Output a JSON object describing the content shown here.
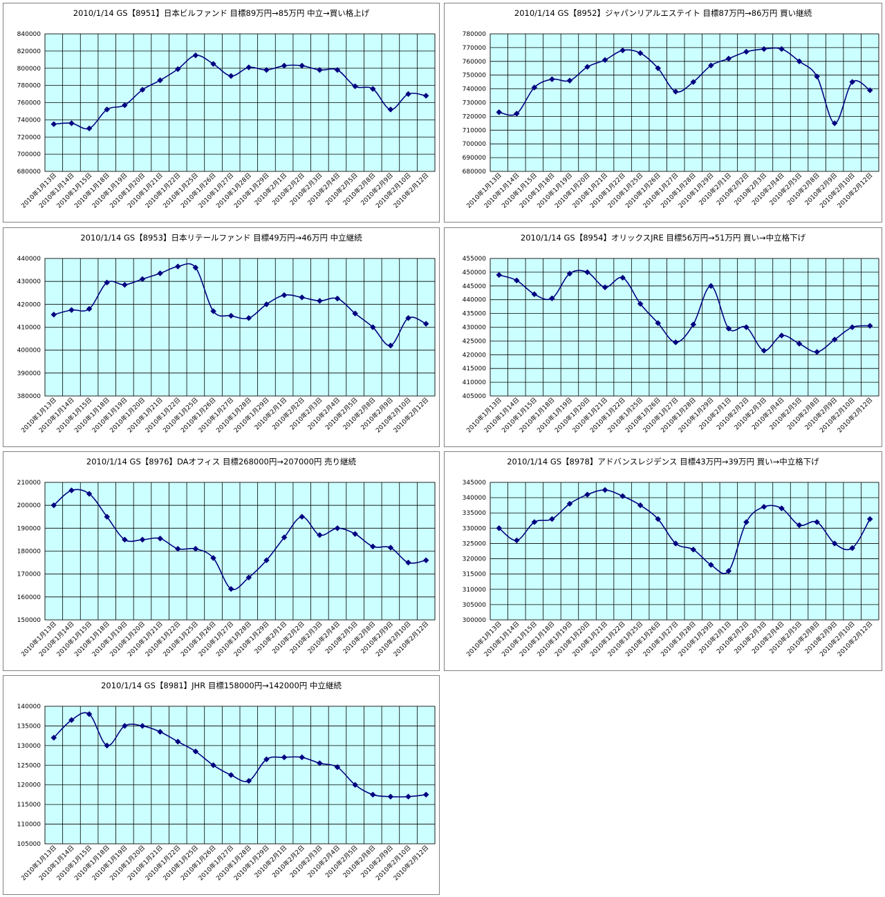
{
  "chart_data": [
    {
      "type": "line",
      "title": "2010/1/14 GS【8951】日本ビルファンド 目標89万円→85万円 中立→買い格上げ",
      "categories": [
        "2010年1月13日",
        "2010年1月14日",
        "2010年1月15日",
        "2010年1月18日",
        "2010年1月19日",
        "2010年1月20日",
        "2010年1月21日",
        "2010年1月22日",
        "2010年1月25日",
        "2010年1月26日",
        "2010年1月27日",
        "2010年1月28日",
        "2010年1月29日",
        "2010年2月1日",
        "2010年2月2日",
        "2010年2月3日",
        "2010年2月4日",
        "2010年2月5日",
        "2010年2月8日",
        "2010年2月9日",
        "2010年2月10日",
        "2010年2月12日"
      ],
      "values": [
        735000,
        736000,
        730000,
        752000,
        757000,
        775000,
        786000,
        799000,
        815000,
        805000,
        791000,
        801000,
        798000,
        803000,
        803000,
        798000,
        798000,
        779000,
        776000,
        752000,
        770000,
        768000
      ],
      "ylim": [
        680000,
        840000
      ],
      "ystep": 20000,
      "yticks": [
        "680000",
        "700000",
        "720000",
        "740000",
        "760000",
        "780000",
        "800000",
        "820000",
        "840000"
      ],
      "grid": true,
      "legend": "none",
      "plot_color": "#ccffff",
      "line_color": "#000080"
    },
    {
      "type": "line",
      "title": "2010/1/14 GS【8952】ジャパンリアルエステイト 目標87万円→86万円 買い継続",
      "categories": [
        "2010年1月13日",
        "2010年1月14日",
        "2010年1月15日",
        "2010年1月18日",
        "2010年1月19日",
        "2010年1月20日",
        "2010年1月21日",
        "2010年1月22日",
        "2010年1月25日",
        "2010年1月26日",
        "2010年1月27日",
        "2010年1月28日",
        "2010年1月29日",
        "2010年2月1日",
        "2010年2月2日",
        "2010年2月3日",
        "2010年2月4日",
        "2010年2月5日",
        "2010年2月8日",
        "2010年2月9日",
        "2010年2月10日",
        "2010年2月12日"
      ],
      "values": [
        723000,
        722000,
        741000,
        747000,
        746000,
        756000,
        761000,
        768000,
        766000,
        755000,
        738000,
        745000,
        757000,
        762000,
        767000,
        769000,
        769000,
        760000,
        749000,
        715000,
        745000,
        739000
      ],
      "ylim": [
        680000,
        780000
      ],
      "ystep": 10000,
      "yticks": [
        "680000",
        "690000",
        "700000",
        "710000",
        "720000",
        "730000",
        "740000",
        "750000",
        "760000",
        "770000",
        "780000"
      ],
      "grid": true,
      "legend": "none",
      "plot_color": "#ccffff",
      "line_color": "#000080"
    },
    {
      "type": "line",
      "title": "2010/1/14 GS【8953】日本リテールファンド 目標49万円→46万円 中立継続",
      "categories": [
        "2010年1月13日",
        "2010年1月14日",
        "2010年1月15日",
        "2010年1月18日",
        "2010年1月19日",
        "2010年1月20日",
        "2010年1月21日",
        "2010年1月22日",
        "2010年1月25日",
        "2010年1月26日",
        "2010年1月27日",
        "2010年1月28日",
        "2010年1月29日",
        "2010年2月1日",
        "2010年2月2日",
        "2010年2月3日",
        "2010年2月4日",
        "2010年2月5日",
        "2010年2月8日",
        "2010年2月9日",
        "2010年2月10日",
        "2010年2月12日"
      ],
      "values": [
        415500,
        417500,
        418000,
        429500,
        428500,
        431000,
        433500,
        436500,
        436000,
        417000,
        415000,
        414000,
        420000,
        424000,
        423000,
        421500,
        422500,
        416000,
        410000,
        402000,
        414000,
        411500
      ],
      "ylim": [
        380000,
        440000
      ],
      "ystep": 10000,
      "yticks": [
        "380000",
        "390000",
        "400000",
        "410000",
        "420000",
        "430000",
        "440000"
      ],
      "grid": true,
      "legend": "none",
      "plot_color": "#ccffff",
      "line_color": "#000080"
    },
    {
      "type": "line",
      "title": "2010/1/14 GS【8954】オリックスJRE 目標56万円→51万円 買い→中立格下げ",
      "categories": [
        "2010年1月13日",
        "2010年1月14日",
        "2010年1月15日",
        "2010年1月18日",
        "2010年1月19日",
        "2010年1月20日",
        "2010年1月21日",
        "2010年1月22日",
        "2010年1月25日",
        "2010年1月26日",
        "2010年1月27日",
        "2010年1月28日",
        "2010年1月29日",
        "2010年2月1日",
        "2010年2月2日",
        "2010年2月3日",
        "2010年2月4日",
        "2010年2月5日",
        "2010年2月8日",
        "2010年2月9日",
        "2010年2月10日",
        "2010年2月12日"
      ],
      "values": [
        449000,
        447000,
        442000,
        440500,
        449500,
        450000,
        444500,
        448000,
        438500,
        431500,
        424500,
        431000,
        445000,
        429500,
        430000,
        421500,
        427000,
        424000,
        421000,
        425500,
        430000,
        430500
      ],
      "ylim": [
        405000,
        455000
      ],
      "ystep": 5000,
      "yticks": [
        "405000",
        "410000",
        "415000",
        "420000",
        "425000",
        "430000",
        "435000",
        "440000",
        "445000",
        "450000",
        "455000"
      ],
      "grid": true,
      "legend": "none",
      "plot_color": "#ccffff",
      "line_color": "#000080"
    },
    {
      "type": "line",
      "title": "2010/1/14 GS【8976】DAオフィス 目標268000円→207000円 売り継続",
      "categories": [
        "2010年1月13日",
        "2010年1月14日",
        "2010年1月15日",
        "2010年1月18日",
        "2010年1月19日",
        "2010年1月20日",
        "2010年1月21日",
        "2010年1月22日",
        "2010年1月25日",
        "2010年1月26日",
        "2010年1月27日",
        "2010年1月28日",
        "2010年1月29日",
        "2010年2月1日",
        "2010年2月2日",
        "2010年2月3日",
        "2010年2月4日",
        "2010年2月5日",
        "2010年2月8日",
        "2010年2月9日",
        "2010年2月10日",
        "2010年2月12日"
      ],
      "values": [
        200000,
        206500,
        205000,
        195000,
        185000,
        185000,
        185500,
        181000,
        181000,
        177000,
        163500,
        168500,
        176000,
        186000,
        195000,
        187000,
        190000,
        187500,
        182000,
        181500,
        175000,
        176000
      ],
      "ylim": [
        150000,
        210000
      ],
      "ystep": 10000,
      "yticks": [
        "150000",
        "160000",
        "170000",
        "180000",
        "190000",
        "200000",
        "210000"
      ],
      "grid": true,
      "legend": "none",
      "plot_color": "#ccffff",
      "line_color": "#000080"
    },
    {
      "type": "line",
      "title": "2010/1/14 GS【8978】アドバンスレジデンス 目標43万円→39万円 買い→中立格下げ",
      "categories": [
        "2010年1月13日",
        "2010年1月14日",
        "2010年1月15日",
        "2010年1月18日",
        "2010年1月19日",
        "2010年1月20日",
        "2010年1月21日",
        "2010年1月22日",
        "2010年1月25日",
        "2010年1月26日",
        "2010年1月27日",
        "2010年1月28日",
        "2010年1月29日",
        "2010年2月1日",
        "2010年2月2日",
        "2010年2月3日",
        "2010年2月4日",
        "2010年2月5日",
        "2010年2月8日",
        "2010年2月9日",
        "2010年2月10日",
        "2010年2月12日"
      ],
      "values": [
        330000,
        326000,
        332000,
        333000,
        338000,
        341000,
        342500,
        340500,
        337500,
        333000,
        325000,
        323000,
        318000,
        316000,
        332000,
        337000,
        336500,
        331000,
        332000,
        325000,
        323500,
        333000
      ],
      "ylim": [
        300000,
        345000
      ],
      "ystep": 5000,
      "yticks": [
        "300000",
        "305000",
        "310000",
        "315000",
        "320000",
        "325000",
        "330000",
        "335000",
        "340000",
        "345000"
      ],
      "grid": true,
      "legend": "none",
      "plot_color": "#ccffff",
      "line_color": "#000080"
    },
    {
      "type": "line",
      "title": "2010/1/14 GS【8981】JHR 目標158000円→142000円 中立継続",
      "categories": [
        "2010年1月13日",
        "2010年1月14日",
        "2010年1月15日",
        "2010年1月18日",
        "2010年1月19日",
        "2010年1月20日",
        "2010年1月21日",
        "2010年1月22日",
        "2010年1月25日",
        "2010年1月26日",
        "2010年1月27日",
        "2010年1月28日",
        "2010年1月29日",
        "2010年2月1日",
        "2010年2月2日",
        "2010年2月3日",
        "2010年2月4日",
        "2010年2月5日",
        "2010年2月8日",
        "2010年2月9日",
        "2010年2月10日",
        "2010年2月12日"
      ],
      "values": [
        132000,
        136500,
        138000,
        130000,
        135000,
        135000,
        133500,
        131000,
        128500,
        125000,
        122500,
        121000,
        126500,
        127000,
        127000,
        125500,
        124500,
        120000,
        117500,
        117000,
        117000,
        117500
      ],
      "ylim": [
        105000,
        140000
      ],
      "ystep": 5000,
      "yticks": [
        "105000",
        "110000",
        "115000",
        "120000",
        "125000",
        "130000",
        "135000",
        "140000"
      ],
      "grid": true,
      "legend": "none",
      "plot_color": "#ccffff",
      "line_color": "#000080"
    }
  ]
}
